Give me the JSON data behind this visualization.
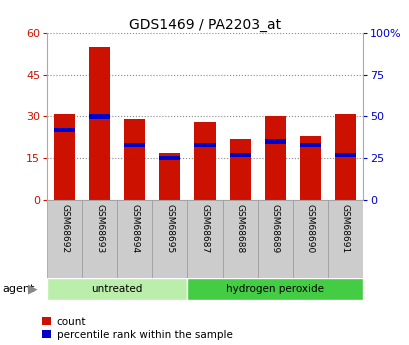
{
  "title": "GDS1469 / PA2203_at",
  "samples": [
    "GSM68692",
    "GSM68693",
    "GSM68694",
    "GSM68695",
    "GSM68687",
    "GSM68688",
    "GSM68689",
    "GSM68690",
    "GSM68691"
  ],
  "counts": [
    31,
    55,
    29,
    17,
    28,
    22,
    30,
    23,
    31
  ],
  "percentiles": [
    42,
    50,
    33,
    25,
    33,
    27,
    35,
    33,
    27
  ],
  "groups": [
    {
      "label": "untreated",
      "span": [
        0,
        4
      ],
      "color": "#bbeeaa"
    },
    {
      "label": "hydrogen peroxide",
      "span": [
        4,
        9
      ],
      "color": "#44cc44"
    }
  ],
  "bar_color_red": "#cc1100",
  "bar_color_blue": "#0000cc",
  "ylim_left": [
    0,
    60
  ],
  "ylim_right": [
    0,
    100
  ],
  "yticks_left": [
    0,
    15,
    30,
    45,
    60
  ],
  "yticks_right": [
    0,
    25,
    50,
    75,
    100
  ],
  "ytick_labels_left": [
    "0",
    "15",
    "30",
    "45",
    "60"
  ],
  "ytick_labels_right": [
    "0",
    "25",
    "50",
    "75",
    "100%"
  ],
  "grid_color": "#888888",
  "background_color": "#ffffff",
  "plot_bg_color": "#ffffff",
  "agent_label": "agent",
  "legend_count": "count",
  "legend_percentile": "percentile rank within the sample",
  "bar_width": 0.6,
  "sample_box_color": "#cccccc",
  "sample_box_border": "#999999",
  "blue_bar_height": 1.5
}
